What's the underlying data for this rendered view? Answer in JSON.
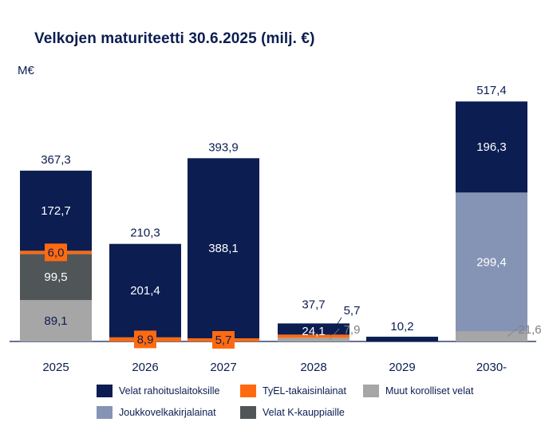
{
  "chart_data": {
    "type": "bar",
    "stacked": true,
    "title": "Velkojen maturiteetti 30.6.2025 (milj. €)",
    "ylabel": "M€",
    "categories": [
      "2025",
      "2026",
      "2027",
      "2028",
      "2029",
      "2030-"
    ],
    "totals": [
      "367,3",
      "210,3",
      "393,9",
      "37,7",
      "10,2",
      "517,4"
    ],
    "ylim": [
      0,
      540
    ],
    "series": [
      {
        "key": "muut",
        "name": "Muut korolliset velat",
        "color": "#a6a6a6",
        "values": [
          89.1,
          0,
          0,
          7.9,
          0,
          21.6
        ],
        "labels": [
          "89,1",
          "",
          "",
          "7,9",
          "",
          "21,6"
        ]
      },
      {
        "key": "kkaup",
        "name": "Velat K-kauppiaille",
        "color": "#505558",
        "values": [
          99.5,
          0,
          0,
          0,
          0,
          0
        ],
        "labels": [
          "99,5",
          "",
          "",
          "",
          "",
          ""
        ]
      },
      {
        "key": "tyel",
        "name": "TyEL-takaisinlainat",
        "color": "#ff6a10",
        "values": [
          6.0,
          8.9,
          5.7,
          5.7,
          0,
          0
        ],
        "labels": [
          "6,0",
          "8,9",
          "5,7",
          "5,7",
          "",
          ""
        ]
      },
      {
        "key": "joukko",
        "name": "Joukkovelkakirjalainat",
        "color": "#8594b5",
        "values": [
          0,
          0,
          0,
          0,
          0,
          299.4
        ],
        "labels": [
          "",
          "",
          "",
          "",
          "",
          "299,4"
        ]
      },
      {
        "key": "rahoitus",
        "name": "Velat rahoituslaitoksille",
        "color": "#0b1d51",
        "values": [
          172.7,
          201.4,
          388.1,
          24.1,
          10.2,
          196.3
        ],
        "labels": [
          "172,7",
          "201,4",
          "388,1",
          "24,1",
          "",
          "196,3"
        ]
      }
    ],
    "legend_order": [
      "rahoitus",
      "tyel",
      "muut",
      "joukko",
      "kkaup"
    ]
  }
}
